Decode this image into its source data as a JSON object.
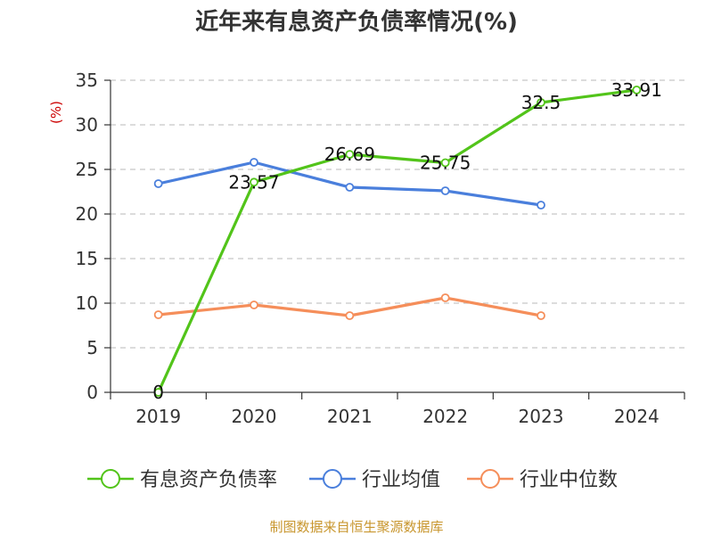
{
  "colors": {
    "asset_liability": "#52c41a",
    "industry_mean": "#4a7fdc",
    "industry_median": "#f58e5a",
    "ylabel": "#cc0000",
    "source": "#c8962e"
  },
  "chart_data": {
    "type": "line",
    "title": "近年来有息资产负债率情况(%)",
    "ylabel": "(%)",
    "xlabel": "",
    "categories": [
      "2019",
      "2020",
      "2021",
      "2022",
      "2023",
      "2024"
    ],
    "ylim": [
      0,
      35
    ],
    "yticks": [
      0,
      5,
      10,
      15,
      20,
      25,
      30,
      35
    ],
    "grid": true,
    "legend_position": "bottom",
    "series": [
      {
        "name": "有息资产负债率",
        "values": [
          0,
          23.57,
          26.69,
          25.75,
          32.5,
          33.91
        ],
        "labels": [
          "0",
          "23.57",
          "26.69",
          "25.75",
          "32.5",
          "33.91"
        ]
      },
      {
        "name": "行业均值",
        "values": [
          23.4,
          25.8,
          23.0,
          22.6,
          21.0,
          null
        ]
      },
      {
        "name": "行业中位数",
        "values": [
          8.7,
          9.8,
          8.6,
          10.6,
          8.6,
          null
        ]
      }
    ]
  },
  "source": "制图数据来自恒生聚源数据库"
}
